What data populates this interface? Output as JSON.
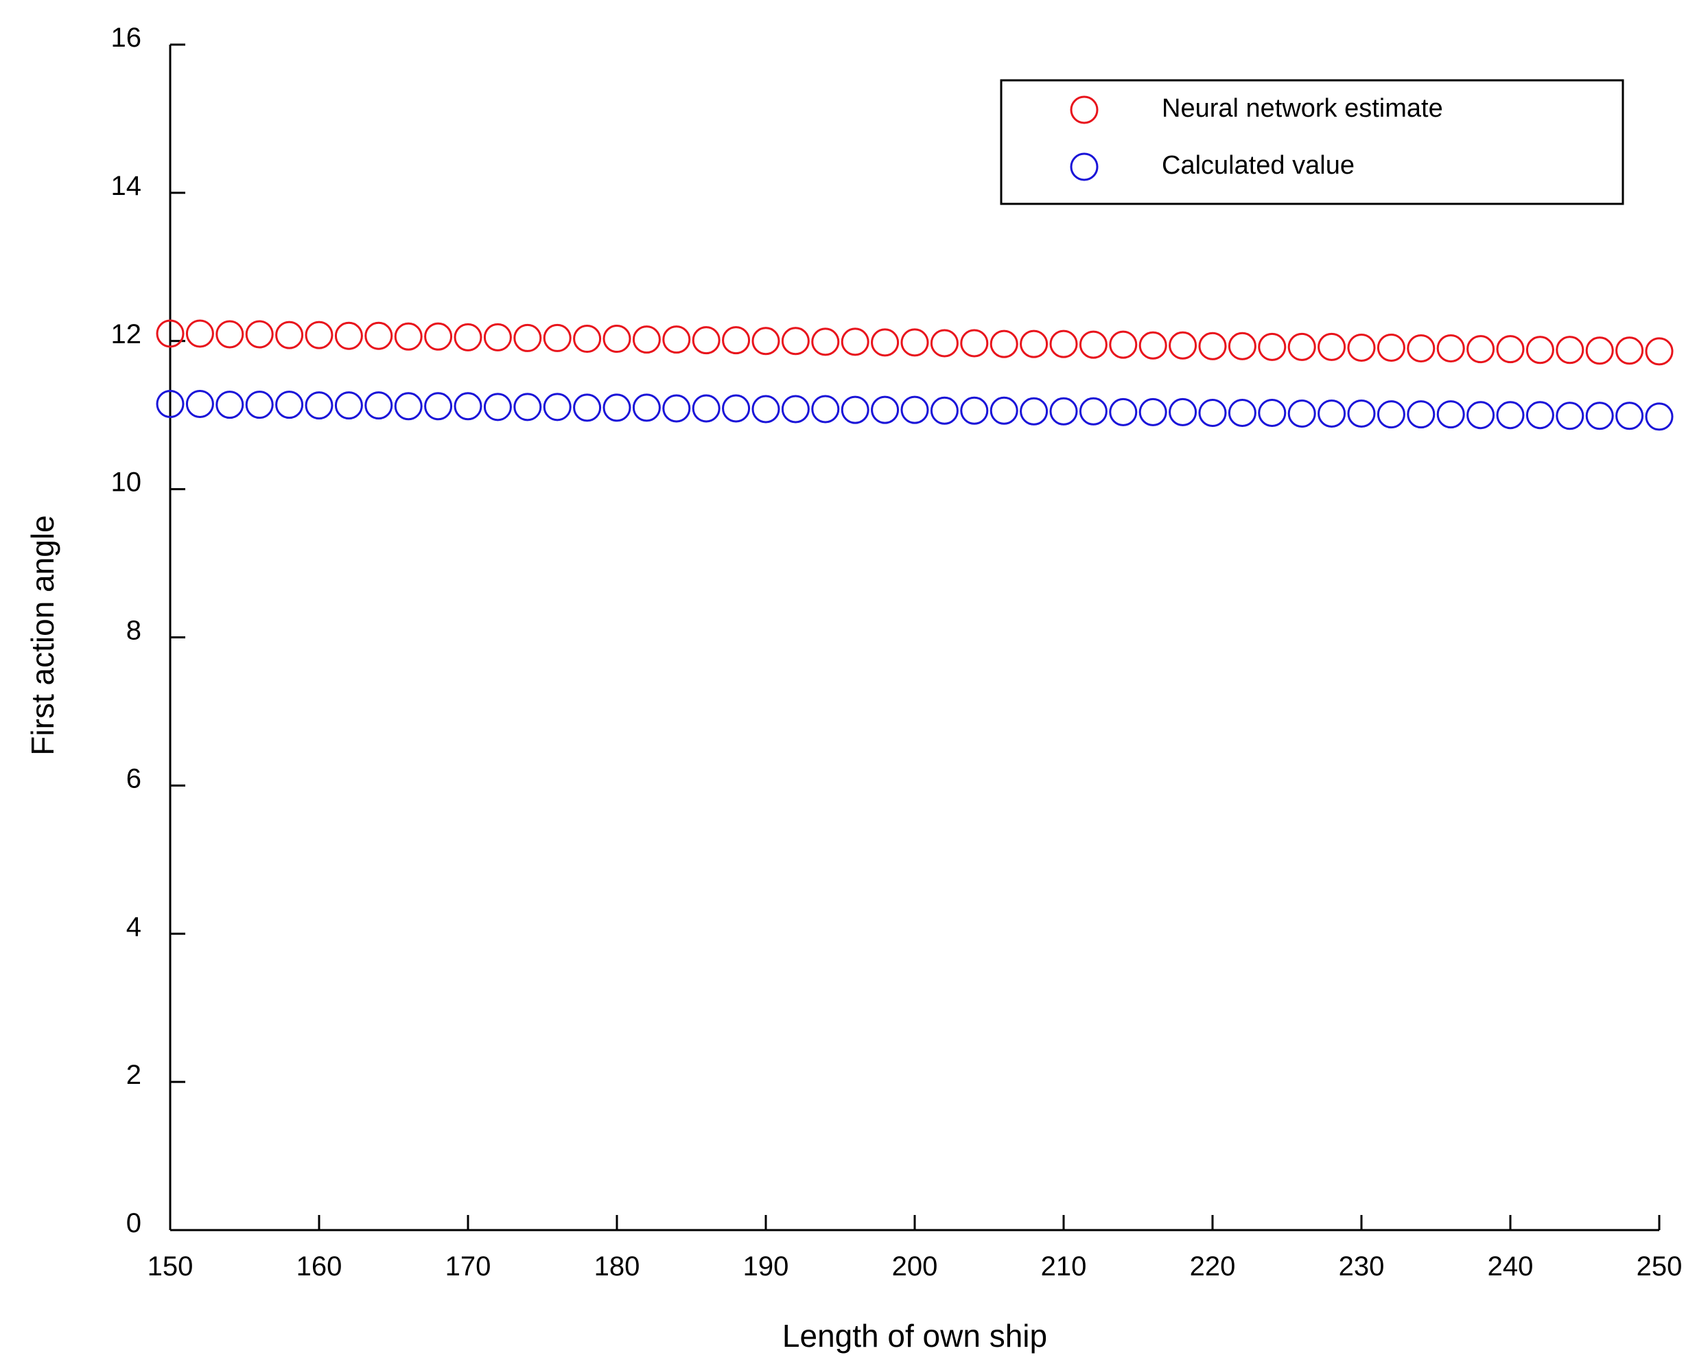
{
  "chart_data": {
    "type": "scatter",
    "title": "",
    "xlabel": "Length of own ship",
    "ylabel": "First action angle",
    "xlim": [
      150,
      250
    ],
    "ylim": [
      0,
      16
    ],
    "xticks": [
      150,
      160,
      170,
      180,
      190,
      200,
      210,
      220,
      230,
      240,
      250
    ],
    "yticks": [
      0,
      2,
      4,
      6,
      8,
      10,
      12,
      14,
      16
    ],
    "grid": false,
    "legend_position": "top-right",
    "marker": "open-circle",
    "x": [
      150,
      152,
      154,
      156,
      158,
      160,
      162,
      164,
      166,
      168,
      170,
      172,
      174,
      176,
      178,
      180,
      182,
      184,
      186,
      188,
      190,
      192,
      194,
      196,
      198,
      200,
      202,
      204,
      206,
      208,
      210,
      212,
      214,
      216,
      218,
      220,
      222,
      224,
      226,
      228,
      230,
      232,
      234,
      236,
      238,
      240,
      242,
      244,
      246,
      248,
      250
    ],
    "series": [
      {
        "name": "Neural network estimate",
        "color": "#e8141c",
        "values": [
          12.1,
          12.1,
          12.09,
          12.09,
          12.08,
          12.08,
          12.07,
          12.07,
          12.06,
          12.06,
          12.05,
          12.05,
          12.04,
          12.04,
          12.03,
          12.03,
          12.02,
          12.02,
          12.01,
          12.01,
          12.0,
          12.0,
          11.99,
          11.99,
          11.98,
          11.98,
          11.97,
          11.97,
          11.96,
          11.96,
          11.96,
          11.95,
          11.95,
          11.94,
          11.94,
          11.93,
          11.93,
          11.92,
          11.92,
          11.92,
          11.91,
          11.91,
          11.9,
          11.9,
          11.89,
          11.89,
          11.88,
          11.88,
          11.87,
          11.87,
          11.86
        ]
      },
      {
        "name": "Calculated value",
        "color": "#1a14d8",
        "values": [
          11.15,
          11.15,
          11.14,
          11.14,
          11.14,
          11.13,
          11.13,
          11.13,
          11.12,
          11.12,
          11.12,
          11.11,
          11.11,
          11.11,
          11.1,
          11.1,
          11.1,
          11.09,
          11.09,
          11.09,
          11.08,
          11.08,
          11.08,
          11.07,
          11.07,
          11.07,
          11.06,
          11.06,
          11.06,
          11.05,
          11.05,
          11.05,
          11.04,
          11.04,
          11.04,
          11.03,
          11.03,
          11.03,
          11.02,
          11.02,
          11.02,
          11.01,
          11.01,
          11.01,
          11.0,
          11.0,
          11.0,
          10.99,
          10.99,
          10.99,
          10.98
        ]
      }
    ]
  }
}
